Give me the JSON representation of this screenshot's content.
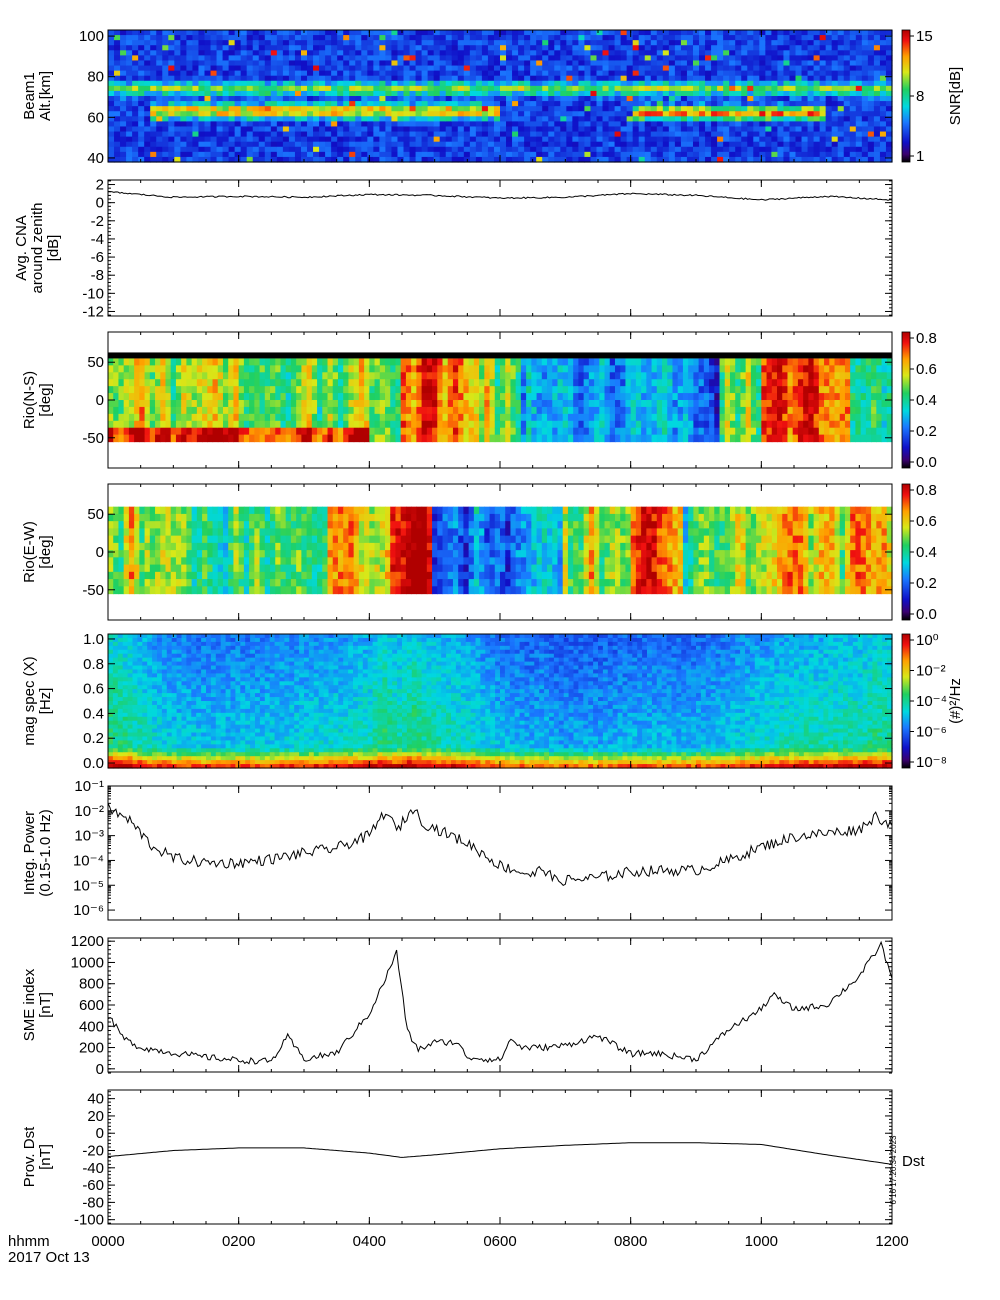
{
  "footer": {
    "time_label": "hhmm",
    "date_label": "2017 Oct 13"
  },
  "x_axis": {
    "ticks": [
      "0000",
      "0200",
      "0400",
      "0600",
      "0800",
      "1000",
      "1200"
    ],
    "range_minutes": [
      0,
      720
    ]
  },
  "stamp": "6 16 17:20:34 2023",
  "colors": {
    "line": "#000000",
    "background": "#ffffff"
  },
  "chart_data": [
    {
      "type": "heatmap",
      "ylabel": [
        "Beam1",
        "Alt.[km]"
      ],
      "yticks": [
        "100",
        "80",
        "60",
        "40"
      ],
      "ylim": [
        38,
        103
      ],
      "colorbar": {
        "label": "SNR[dB]",
        "ticks": [
          "15",
          "8",
          "1"
        ],
        "range": [
          1,
          15
        ]
      },
      "features": [
        {
          "alt_km": 74,
          "from_hhmm": "0000",
          "to_hhmm": "1200",
          "level": "moderate"
        },
        {
          "alt_km": 63,
          "from_hhmm": "0040",
          "to_hhmm": "0600",
          "level": "high"
        },
        {
          "alt_km": 62,
          "from_hhmm": "0800",
          "to_hhmm": "1100",
          "level": "high"
        }
      ]
    },
    {
      "type": "line",
      "ylabel": [
        "Avg. CNA",
        "around zenith",
        "[dB]"
      ],
      "yticks": [
        "2",
        "0",
        "-2",
        "-4",
        "-6",
        "-8",
        "-10",
        "-12"
      ],
      "ylim": [
        -12.5,
        2.5
      ],
      "x": [
        "0000",
        "0100",
        "0200",
        "0300",
        "0400",
        "0500",
        "0600",
        "0700",
        "0800",
        "0900",
        "1000",
        "1100",
        "1200"
      ],
      "values": [
        1.2,
        0.6,
        0.7,
        0.6,
        0.9,
        0.8,
        0.5,
        0.6,
        1.0,
        0.8,
        0.3,
        0.7,
        0.3
      ]
    },
    {
      "type": "heatmap",
      "ylabel": [
        "Rio(N-S)",
        "[deg]"
      ],
      "yticks": [
        "50",
        "0",
        "-50"
      ],
      "ylim": [
        -90,
        90
      ],
      "colorbar": {
        "ticks": [
          "0.8",
          "0.6",
          "0.4",
          "0.2",
          "0.0"
        ],
        "range": [
          0,
          0.8
        ]
      }
    },
    {
      "type": "heatmap",
      "ylabel": [
        "Rio(E-W)",
        "[deg]"
      ],
      "yticks": [
        "50",
        "0",
        "-50"
      ],
      "ylim": [
        -90,
        90
      ],
      "colorbar": {
        "ticks": [
          "0.8",
          "0.6",
          "0.4",
          "0.2",
          "0.0"
        ],
        "range": [
          0,
          0.8
        ]
      }
    },
    {
      "type": "heatmap",
      "ylabel": [
        "mag spec (X)",
        "[Hz]"
      ],
      "yticks": [
        "1.0",
        "0.8",
        "0.6",
        "0.4",
        "0.2",
        "0.0"
      ],
      "ylim": [
        -0.04,
        1.04
      ],
      "colorbar": {
        "label": "(#)²/Hz",
        "ticks": [
          "10⁰",
          "10⁻²",
          "10⁻⁴",
          "10⁻⁶",
          "10⁻⁸"
        ],
        "range_log10": [
          -9,
          1
        ]
      }
    },
    {
      "type": "line",
      "ylabel": [
        "Integ. Power",
        "(0.15-1.0 Hz)"
      ],
      "yticks": [
        "10⁻¹",
        "10⁻²",
        "10⁻³",
        "10⁻⁴",
        "10⁻⁵",
        "10⁻⁶"
      ],
      "ylim_log10": [
        -6.4,
        -1
      ],
      "x": [
        "0000",
        "0020",
        "0040",
        "0100",
        "0130",
        "0200",
        "0230",
        "0300",
        "0330",
        "0400",
        "0415",
        "0425",
        "0440",
        "0450",
        "0500",
        "0530",
        "0600",
        "0630",
        "0640",
        "0650",
        "0700",
        "0730",
        "0800",
        "0830",
        "0900",
        "0930",
        "1000",
        "1030",
        "1100",
        "1130",
        "1145",
        "1200"
      ],
      "values_log10": [
        -1.9,
        -2.4,
        -3.4,
        -3.9,
        -4.1,
        -4.1,
        -3.95,
        -3.7,
        -3.5,
        -3.0,
        -2.0,
        -2.8,
        -1.9,
        -2.5,
        -2.7,
        -3.3,
        -4.2,
        -4.6,
        -4.3,
        -4.8,
        -4.8,
        -4.7,
        -4.45,
        -4.4,
        -4.4,
        -4.0,
        -3.45,
        -3.05,
        -2.9,
        -2.75,
        -2.2,
        -2.6
      ]
    },
    {
      "type": "line",
      "ylabel": [
        "SME index",
        "[nT]"
      ],
      "yticks": [
        "1200",
        "1000",
        "800",
        "600",
        "400",
        "200",
        "0"
      ],
      "ylim": [
        -30,
        1230
      ],
      "x": [
        "0000",
        "0015",
        "0030",
        "0100",
        "0130",
        "0200",
        "0230",
        "0245",
        "0300",
        "0330",
        "0400",
        "0415",
        "0425",
        "0435",
        "0445",
        "0500",
        "0520",
        "0530",
        "0600",
        "0610",
        "0620",
        "0640",
        "0700",
        "0730",
        "0800",
        "0820",
        "0840",
        "0900",
        "0930",
        "1000",
        "1010",
        "1030",
        "1100",
        "1130",
        "1150",
        "1200"
      ],
      "values": [
        500,
        280,
        200,
        150,
        110,
        80,
        70,
        300,
        90,
        150,
        520,
        850,
        1100,
        350,
        180,
        250,
        250,
        110,
        80,
        280,
        200,
        200,
        220,
        310,
        140,
        150,
        120,
        90,
        370,
        560,
        700,
        560,
        600,
        870,
        1170,
        850
      ]
    },
    {
      "type": "line",
      "ylabel": [
        "Prov. Dst",
        "[nT]"
      ],
      "yticks": [
        "40",
        "20",
        "0",
        "-20",
        "-40",
        "-60",
        "-80",
        "-100"
      ],
      "ylim": [
        -105,
        50
      ],
      "series_label": "Dst",
      "x": [
        "0000",
        "0100",
        "0200",
        "0300",
        "0400",
        "0430",
        "0500",
        "0600",
        "0700",
        "0800",
        "0900",
        "1000",
        "1100",
        "1200"
      ],
      "values": [
        -27,
        -20,
        -17,
        -17,
        -23,
        -28,
        -25,
        -18,
        -14,
        -11,
        -11,
        -13,
        -25,
        -36
      ]
    }
  ]
}
